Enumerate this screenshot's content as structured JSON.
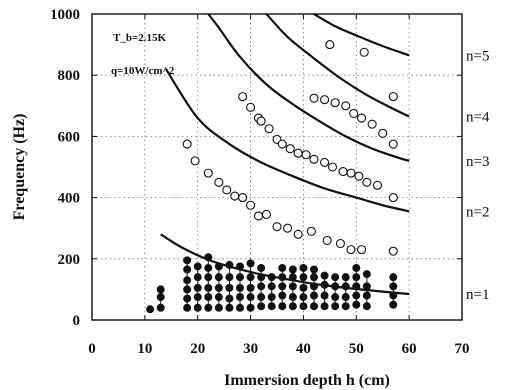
{
  "chart_data": {
    "type": "scatter",
    "title": "",
    "xlabel": "Immersion depth h (cm)",
    "ylabel": "Frequency (Hz)",
    "xlim": [
      0,
      70
    ],
    "ylim": [
      0,
      1000
    ],
    "x_ticks": [
      "0",
      "10",
      "20",
      "30",
      "40",
      "50",
      "60",
      "70"
    ],
    "y_ticks": [
      "0",
      "200",
      "400",
      "600",
      "800",
      "1000"
    ],
    "grid": true,
    "annotations": {
      "tb": "T_b=2.15K",
      "q": "q=10W/cm^2"
    },
    "curves": [
      {
        "label": "n=1",
        "points": [
          [
            13,
            280
          ],
          [
            17,
            237
          ],
          [
            22,
            197
          ],
          [
            27,
            170
          ],
          [
            32,
            149
          ],
          [
            37,
            133
          ],
          [
            42,
            118
          ],
          [
            47,
            107
          ],
          [
            52,
            98
          ],
          [
            56,
            91
          ],
          [
            60,
            85
          ]
        ]
      },
      {
        "label": "n=2",
        "points": [
          [
            14,
            820
          ],
          [
            20,
            660
          ],
          [
            26,
            575
          ],
          [
            32,
            515
          ],
          [
            38,
            470
          ],
          [
            44,
            430
          ],
          [
            50,
            400
          ],
          [
            55,
            375
          ],
          [
            60,
            355
          ]
        ]
      },
      {
        "label": "n=3",
        "points": [
          [
            22,
            1000
          ],
          [
            24,
            955
          ],
          [
            28,
            860
          ],
          [
            33,
            770
          ],
          [
            38,
            705
          ],
          [
            43,
            650
          ],
          [
            48,
            600
          ],
          [
            53,
            560
          ],
          [
            58,
            530
          ],
          [
            60,
            520
          ]
        ]
      },
      {
        "label": "n=4",
        "points": [
          [
            33,
            1000
          ],
          [
            37,
            925
          ],
          [
            42,
            855
          ],
          [
            47,
            790
          ],
          [
            52,
            735
          ],
          [
            57,
            690
          ],
          [
            60,
            665
          ]
        ]
      },
      {
        "label": "n=5",
        "points": [
          [
            42,
            1000
          ],
          [
            46,
            960
          ],
          [
            50,
            930
          ],
          [
            55,
            895
          ],
          [
            60,
            865
          ]
        ]
      }
    ],
    "open_points": [
      [
        18,
        575
      ],
      [
        19.5,
        520
      ],
      [
        22,
        480
      ],
      [
        24,
        450
      ],
      [
        25.5,
        425
      ],
      [
        27,
        405
      ],
      [
        28.5,
        400
      ],
      [
        30,
        375
      ],
      [
        31.5,
        340
      ],
      [
        33,
        345
      ],
      [
        35,
        305
      ],
      [
        37,
        300
      ],
      [
        39,
        280
      ],
      [
        41.5,
        290
      ],
      [
        44.5,
        260
      ],
      [
        47,
        250
      ],
      [
        49,
        230
      ],
      [
        51,
        230
      ],
      [
        57,
        225
      ],
      [
        28.5,
        730
      ],
      [
        30,
        695
      ],
      [
        31.5,
        660
      ],
      [
        32,
        650
      ],
      [
        33.5,
        625
      ],
      [
        35,
        590
      ],
      [
        36,
        575
      ],
      [
        37.5,
        560
      ],
      [
        39,
        545
      ],
      [
        40.5,
        540
      ],
      [
        42,
        525
      ],
      [
        44,
        515
      ],
      [
        45.5,
        500
      ],
      [
        47.5,
        485
      ],
      [
        49,
        480
      ],
      [
        50.5,
        470
      ],
      [
        52,
        450
      ],
      [
        54,
        440
      ],
      [
        57,
        400
      ],
      [
        42,
        725
      ],
      [
        44,
        720
      ],
      [
        46,
        710
      ],
      [
        48,
        700
      ],
      [
        49.5,
        675
      ],
      [
        51,
        660
      ],
      [
        53,
        640
      ],
      [
        55,
        610
      ],
      [
        57,
        575
      ],
      [
        45,
        900
      ],
      [
        51.5,
        875
      ],
      [
        57,
        730
      ]
    ],
    "filled_points": [
      [
        11,
        35
      ],
      [
        13,
        40
      ],
      [
        13,
        75
      ],
      [
        13,
        100
      ],
      [
        18,
        40
      ],
      [
        18,
        70
      ],
      [
        18,
        100
      ],
      [
        18,
        130
      ],
      [
        18,
        165
      ],
      [
        18,
        195
      ],
      [
        20,
        40
      ],
      [
        20,
        75
      ],
      [
        20,
        105
      ],
      [
        20,
        140
      ],
      [
        20,
        175
      ],
      [
        22,
        40
      ],
      [
        22,
        75
      ],
      [
        22,
        105
      ],
      [
        22,
        140
      ],
      [
        22,
        170
      ],
      [
        22,
        205
      ],
      [
        24,
        40
      ],
      [
        24,
        75
      ],
      [
        24,
        105
      ],
      [
        24,
        140
      ],
      [
        24,
        175
      ],
      [
        26,
        40
      ],
      [
        26,
        70
      ],
      [
        26,
        105
      ],
      [
        26,
        140
      ],
      [
        26,
        180
      ],
      [
        28,
        40
      ],
      [
        28,
        75
      ],
      [
        28,
        105
      ],
      [
        28,
        140
      ],
      [
        28,
        175
      ],
      [
        30,
        40
      ],
      [
        30,
        75
      ],
      [
        30,
        105
      ],
      [
        30,
        140
      ],
      [
        30,
        185
      ],
      [
        32,
        45
      ],
      [
        32,
        75
      ],
      [
        32,
        110
      ],
      [
        32,
        140
      ],
      [
        32,
        170
      ],
      [
        34,
        45
      ],
      [
        34,
        75
      ],
      [
        34,
        110
      ],
      [
        34,
        140
      ],
      [
        36,
        45
      ],
      [
        36,
        80
      ],
      [
        36,
        110
      ],
      [
        36,
        140
      ],
      [
        36,
        170
      ],
      [
        38,
        45
      ],
      [
        38,
        75
      ],
      [
        38,
        110
      ],
      [
        38,
        140
      ],
      [
        38,
        165
      ],
      [
        40,
        45
      ],
      [
        40,
        75
      ],
      [
        40,
        105
      ],
      [
        40,
        140
      ],
      [
        40,
        170
      ],
      [
        42,
        45
      ],
      [
        42,
        80
      ],
      [
        42,
        110
      ],
      [
        42,
        140
      ],
      [
        42,
        165
      ],
      [
        44,
        45
      ],
      [
        44,
        80
      ],
      [
        44,
        115
      ],
      [
        44,
        145
      ],
      [
        46,
        45
      ],
      [
        46,
        75
      ],
      [
        46,
        110
      ],
      [
        46,
        140
      ],
      [
        48,
        45
      ],
      [
        48,
        75
      ],
      [
        48,
        110
      ],
      [
        48,
        140
      ],
      [
        50,
        50
      ],
      [
        50,
        80
      ],
      [
        50,
        110
      ],
      [
        50,
        140
      ],
      [
        50,
        170
      ],
      [
        52,
        45
      ],
      [
        52,
        80
      ],
      [
        52,
        110
      ],
      [
        52,
        150
      ],
      [
        57,
        50
      ],
      [
        57,
        80
      ],
      [
        57,
        110
      ],
      [
        57,
        140
      ]
    ]
  }
}
